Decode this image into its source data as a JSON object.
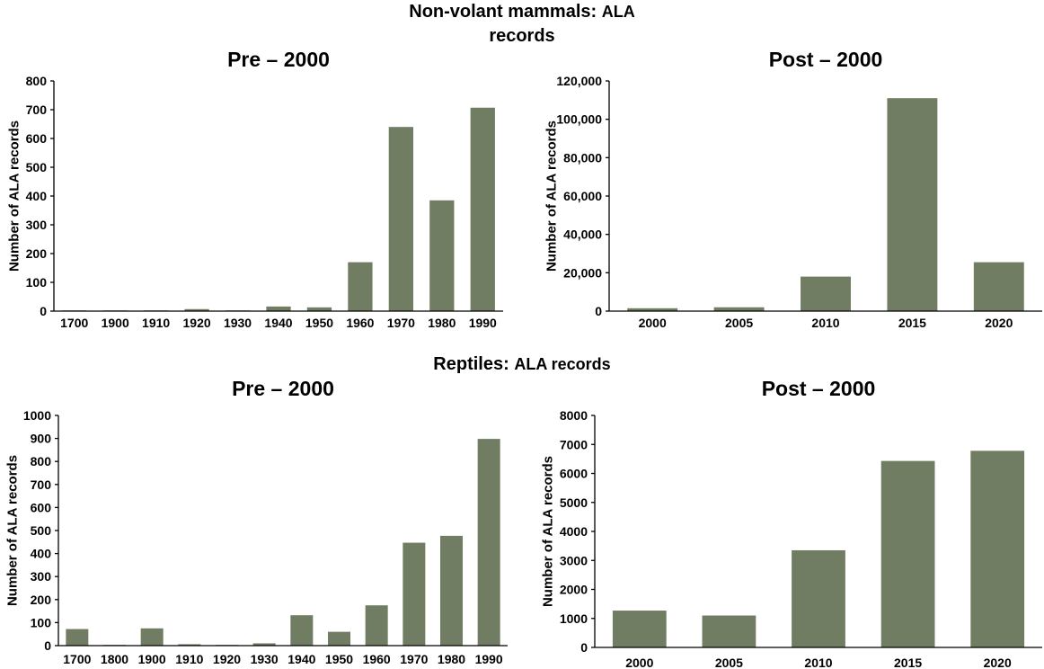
{
  "section_titles": {
    "top_main": "Non-volant mammals:",
    "top_suffix": "ALA",
    "top_line2": "records",
    "bottom_main": "Reptiles:",
    "bottom_suffix": "ALA records"
  },
  "colors": {
    "bar": "#707d63",
    "axis": "#000000"
  },
  "chart_data": [
    {
      "id": "mammals-pre",
      "type": "bar",
      "title": "Pre – 2000",
      "ylabel": "Number of ALA records",
      "xlabel": "",
      "categories": [
        "1700",
        "1900",
        "1910",
        "1920",
        "1930",
        "1940",
        "1950",
        "1960",
        "1970",
        "1980",
        "1990"
      ],
      "values": [
        2,
        1,
        2,
        7,
        2,
        16,
        13,
        170,
        640,
        385,
        707
      ],
      "ylim": [
        0,
        800
      ],
      "yticks": [
        "0",
        "100",
        "200",
        "300",
        "400",
        "500",
        "600",
        "700",
        "800"
      ],
      "grid": false
    },
    {
      "id": "mammals-post",
      "type": "bar",
      "title": "Post – 2000",
      "ylabel": "Number of ALA records",
      "xlabel": "",
      "categories": [
        "2000",
        "2005",
        "2010",
        "2015",
        "2020"
      ],
      "values": [
        1500,
        2000,
        18000,
        111000,
        25500
      ],
      "ylim": [
        0,
        120000
      ],
      "yticks": [
        "0",
        "20,000",
        "40,000",
        "60,000",
        "80,000",
        "100,000",
        "120,000"
      ],
      "grid": false
    },
    {
      "id": "reptiles-pre",
      "type": "bar",
      "title": "Pre – 2000",
      "ylabel": "Number of ALA records",
      "xlabel": "",
      "categories": [
        "1700",
        "1800",
        "1900",
        "1910",
        "1920",
        "1930",
        "1940",
        "1950",
        "1960",
        "1970",
        "1980",
        "1990"
      ],
      "values": [
        72,
        1,
        75,
        6,
        1,
        10,
        132,
        60,
        175,
        447,
        477,
        898
      ],
      "ylim": [
        0,
        1000
      ],
      "yticks": [
        "0",
        "100",
        "200",
        "300",
        "400",
        "500",
        "600",
        "700",
        "800",
        "900",
        "1000"
      ],
      "grid": false
    },
    {
      "id": "reptiles-post",
      "type": "bar",
      "title": "Post – 2000",
      "ylabel": "Number of ALA records",
      "xlabel": "",
      "categories": [
        "2000",
        "2005",
        "2010",
        "2015",
        "2020"
      ],
      "values": [
        1270,
        1100,
        3350,
        6430,
        6780
      ],
      "ylim": [
        0,
        8000
      ],
      "yticks": [
        "0",
        "1000",
        "2000",
        "3000",
        "4000",
        "5000",
        "6000",
        "7000",
        "8000"
      ],
      "grid": false
    }
  ]
}
